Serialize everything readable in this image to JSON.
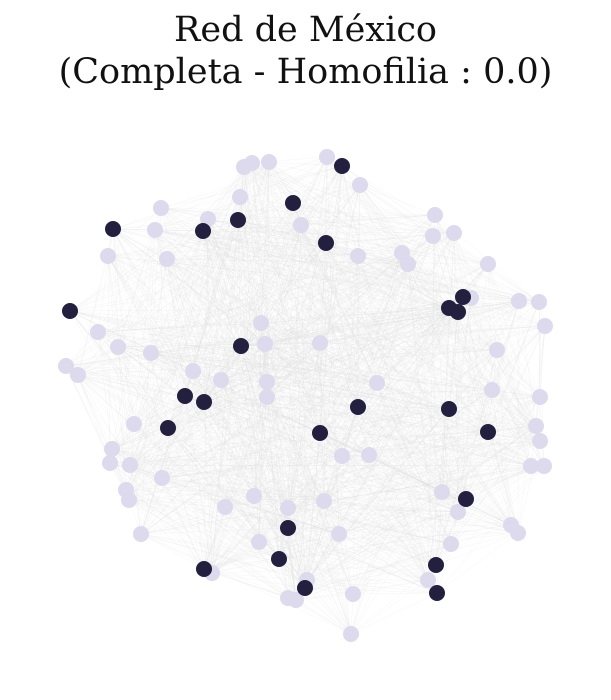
{
  "title": {
    "line1": "Red de México",
    "line2": "(Completa - Homofilia : 0.0)"
  },
  "colors": {
    "node_majority": "#dcdaec",
    "node_minority": "#221f3f",
    "edge": "#dcdcdc",
    "background": "#ffffff"
  },
  "network": {
    "edge_density": 0.35
  }
}
